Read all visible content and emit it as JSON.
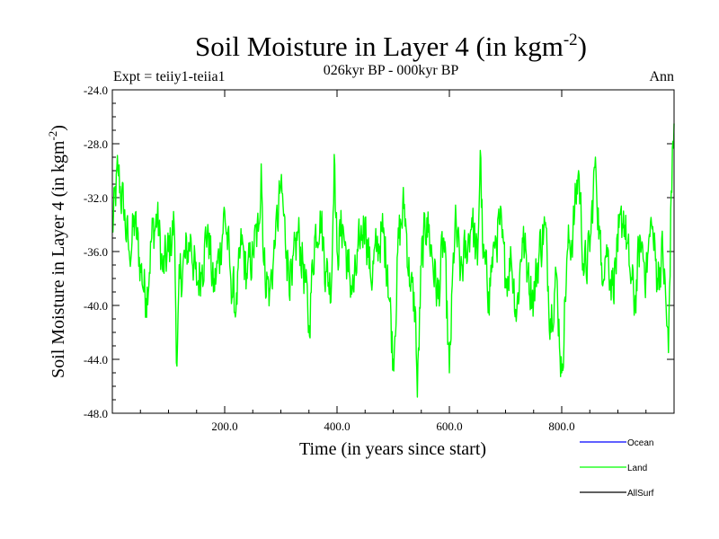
{
  "chart_data": {
    "type": "line",
    "title": "Soil Moisture in Layer 4 (in kgm",
    "title_sup": "-2",
    "title_end": ")",
    "subtitle": "026kyr BP - 000kyr BP",
    "left_label": "Expt = teiiy1-teiia1",
    "right_label": "Ann",
    "xlabel": "Time (in years since start)",
    "ylabel": "Soil Moisture in Layer 4 (in kgm",
    "ylabel_sup": "-2",
    "ylabel_end": ")",
    "xlim": [
      0,
      1000
    ],
    "ylim": [
      -48,
      -24
    ],
    "x_ticks": [
      200,
      400,
      600,
      800
    ],
    "x_tick_labels": [
      "200.0",
      "400.0",
      "600.0",
      "800.0"
    ],
    "y_ticks": [
      -24,
      -28,
      -32,
      -36,
      -40,
      -44,
      -48
    ],
    "y_tick_labels": [
      "-24.0",
      "-28.0",
      "-32.0",
      "-36.0",
      "-40.0",
      "-44.0",
      "-48.0"
    ],
    "grid": false,
    "legend_position": "bottom-right",
    "legend": [
      {
        "name": "Ocean",
        "color": "#0000ff"
      },
      {
        "name": "Land",
        "color": "#00ff00"
      },
      {
        "name": "AllSurf",
        "color": "#000000"
      }
    ],
    "series": [
      {
        "name": "Land",
        "color": "#00ff00",
        "anchors_x": [
          0,
          10,
          20,
          30,
          40,
          50,
          60,
          70,
          80,
          90,
          100,
          110,
          115,
          120,
          130,
          140,
          150,
          160,
          170,
          180,
          190,
          200,
          210,
          220,
          230,
          240,
          250,
          260,
          265,
          270,
          280,
          290,
          300,
          310,
          320,
          330,
          340,
          350,
          360,
          370,
          380,
          390,
          395,
          400,
          410,
          420,
          430,
          440,
          450,
          460,
          470,
          480,
          490,
          500,
          510,
          520,
          530,
          540,
          543,
          550,
          560,
          570,
          580,
          590,
          600,
          610,
          620,
          630,
          640,
          650,
          655,
          660,
          670,
          680,
          690,
          700,
          710,
          720,
          730,
          740,
          750,
          760,
          770,
          780,
          790,
          800,
          810,
          820,
          830,
          840,
          850,
          860,
          870,
          880,
          890,
          900,
          910,
          920,
          930,
          940,
          950,
          960,
          970,
          980,
          990,
          995,
          1000
        ],
        "anchors_y": [
          -34.5,
          -30.0,
          -33.0,
          -36.0,
          -34.0,
          -37.0,
          -39.5,
          -35.0,
          -33.5,
          -37.5,
          -36.0,
          -34.0,
          -44.5,
          -38.0,
          -36.5,
          -35.0,
          -38.5,
          -37.0,
          -34.0,
          -39.0,
          -36.5,
          -33.0,
          -37.5,
          -40.5,
          -35.5,
          -38.0,
          -36.0,
          -34.5,
          -29.5,
          -37.0,
          -39.0,
          -35.5,
          -31.0,
          -36.0,
          -38.5,
          -34.5,
          -37.0,
          -41.5,
          -35.0,
          -33.0,
          -37.5,
          -38.5,
          -28.8,
          -36.0,
          -34.0,
          -37.5,
          -39.0,
          -35.5,
          -33.5,
          -38.0,
          -36.0,
          -34.5,
          -37.0,
          -44.0,
          -35.0,
          -32.5,
          -38.5,
          -40.5,
          -46.8,
          -37.0,
          -33.5,
          -36.5,
          -39.5,
          -35.0,
          -45.0,
          -34.0,
          -37.5,
          -36.0,
          -33.5,
          -37.0,
          -28.5,
          -36.5,
          -39.0,
          -35.5,
          -34.0,
          -38.0,
          -36.5,
          -40.5,
          -35.0,
          -37.5,
          -39.5,
          -36.0,
          -34.0,
          -41.0,
          -37.5,
          -45.0,
          -36.0,
          -34.5,
          -30.0,
          -37.5,
          -36.0,
          -29.0,
          -37.0,
          -35.5,
          -38.5,
          -36.0,
          -33.0,
          -37.0,
          -40.0,
          -35.0,
          -37.5,
          -34.0,
          -38.0,
          -36.0,
          -43.5,
          -31.5,
          -26.5
        ],
        "amplitude": 1.8,
        "count": 1000
      },
      {
        "name": "Ocean",
        "color": "#0000ff",
        "values": []
      },
      {
        "name": "AllSurf",
        "color": "#000000",
        "values": []
      }
    ]
  }
}
